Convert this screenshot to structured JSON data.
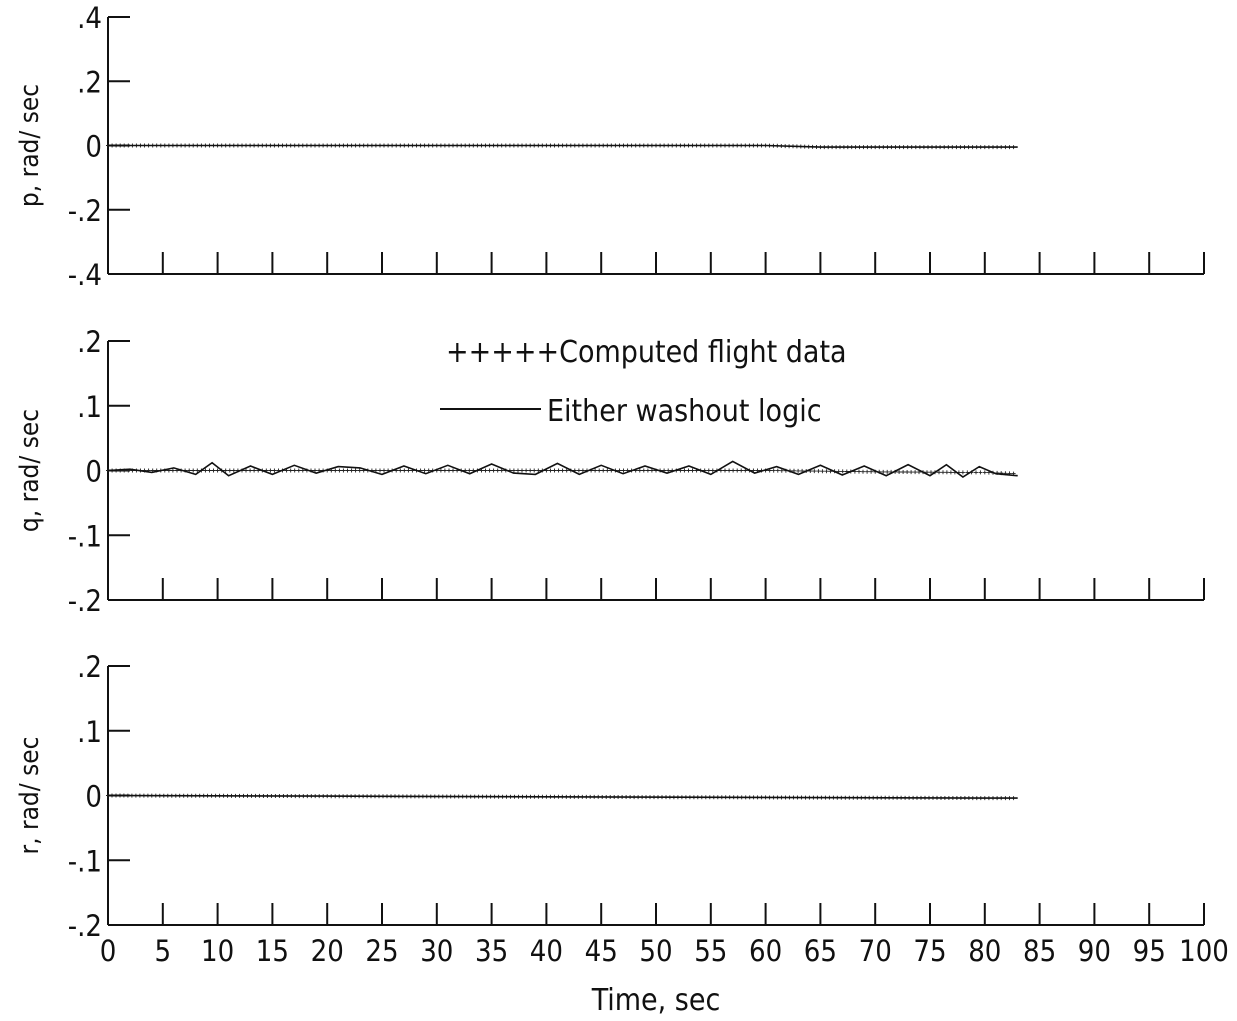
{
  "chart_data": [
    {
      "type": "line",
      "ylabel": "p, rad/ sec",
      "ylim": [
        -0.4,
        0.4
      ],
      "yticks": [
        ".4",
        ".2",
        "0",
        "-.2",
        "-.4"
      ],
      "ytick_values": [
        0.4,
        0.2,
        0,
        -0.2,
        -0.4
      ],
      "xlim": [
        0,
        100
      ],
      "series": [
        {
          "name": "Computed flight data",
          "style": "crosses",
          "x": [
            0,
            10,
            20,
            30,
            40,
            50,
            60,
            65,
            70,
            80,
            83
          ],
          "y": [
            0.0,
            0.0,
            0.0,
            0.0,
            0.0,
            0.0,
            0.0,
            -0.005,
            -0.005,
            -0.005,
            -0.005
          ]
        },
        {
          "name": "Either washout logic",
          "style": "solid",
          "x": [
            0,
            10,
            20,
            30,
            40,
            50,
            60,
            65,
            70,
            80,
            83
          ],
          "y": [
            0.0,
            0.0,
            0.0,
            0.0,
            0.0,
            0.0,
            0.0,
            -0.005,
            -0.005,
            -0.005,
            -0.005
          ]
        }
      ]
    },
    {
      "type": "line",
      "ylabel": "q, rad/ sec",
      "ylim": [
        -0.2,
        0.2
      ],
      "yticks": [
        ".2",
        ".1",
        "0",
        "-.1",
        "-.2"
      ],
      "ytick_values": [
        0.2,
        0.1,
        0,
        -0.1,
        -0.2
      ],
      "xlim": [
        0,
        100
      ],
      "series": [
        {
          "name": "Computed flight data",
          "style": "crosses",
          "x": [
            0,
            10,
            20,
            30,
            40,
            50,
            60,
            70,
            78,
            80,
            83
          ],
          "y": [
            0.0,
            0.0,
            0.0,
            0.0,
            0.0,
            0.0,
            0.0,
            -0.002,
            -0.003,
            -0.003,
            -0.005
          ]
        },
        {
          "name": "Either washout logic",
          "style": "solid",
          "x": [
            0,
            2,
            4,
            6,
            8,
            9.5,
            11,
            13,
            15,
            17,
            19,
            21,
            23,
            25,
            27,
            29,
            31,
            33,
            35,
            37,
            39,
            41,
            43,
            45,
            47,
            49,
            51,
            53,
            55,
            57,
            59,
            61,
            63,
            65,
            67,
            69,
            71,
            73,
            75,
            76.5,
            78,
            79.5,
            81,
            83
          ],
          "y": [
            0.0,
            0.002,
            -0.003,
            0.004,
            -0.006,
            0.012,
            -0.008,
            0.007,
            -0.006,
            0.008,
            -0.004,
            0.006,
            0.004,
            -0.006,
            0.007,
            -0.005,
            0.008,
            -0.005,
            0.01,
            -0.004,
            -0.006,
            0.011,
            -0.006,
            0.008,
            -0.005,
            0.007,
            -0.004,
            0.007,
            -0.006,
            0.014,
            -0.004,
            0.006,
            -0.006,
            0.008,
            -0.007,
            0.007,
            -0.008,
            0.009,
            -0.008,
            0.009,
            -0.01,
            0.006,
            -0.005,
            -0.008
          ]
        }
      ]
    },
    {
      "type": "line",
      "ylabel": "r, rad/ sec",
      "xlabel": "Time, sec",
      "ylim": [
        -0.2,
        0.2
      ],
      "yticks": [
        ".2",
        ".1",
        "0",
        "-.1",
        "-.2"
      ],
      "ytick_values": [
        0.2,
        0.1,
        0,
        -0.1,
        -0.2
      ],
      "xlim": [
        0,
        100
      ],
      "xticks": [
        "0",
        "5",
        "10",
        "15",
        "20",
        "25",
        "30",
        "35",
        "40",
        "45",
        "50",
        "55",
        "60",
        "65",
        "70",
        "75",
        "80",
        "85",
        "90",
        "95",
        "100"
      ],
      "xtick_values": [
        0,
        5,
        10,
        15,
        20,
        25,
        30,
        35,
        40,
        45,
        50,
        55,
        60,
        65,
        70,
        75,
        80,
        85,
        90,
        95,
        100
      ],
      "series": [
        {
          "name": "Computed flight data",
          "style": "crosses",
          "x": [
            0,
            20,
            40,
            60,
            80,
            83
          ],
          "y": [
            0.0,
            -0.001,
            -0.002,
            -0.003,
            -0.004,
            -0.004
          ]
        },
        {
          "name": "Either washout logic",
          "style": "solid",
          "x": [
            0,
            20,
            40,
            60,
            80,
            83
          ],
          "y": [
            0.0,
            -0.001,
            -0.002,
            -0.003,
            -0.004,
            -0.004
          ]
        }
      ]
    }
  ],
  "legend": {
    "computed_text": "+++++Computed flight data",
    "washout_text": "Either washout logic"
  }
}
